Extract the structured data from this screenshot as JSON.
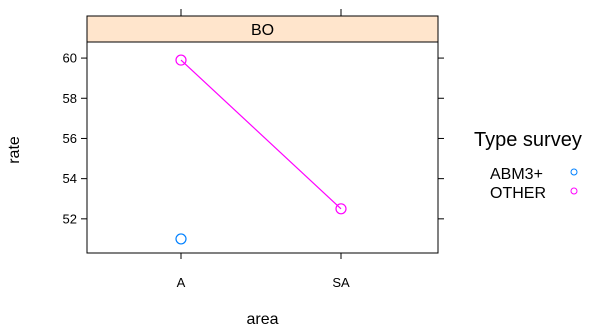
{
  "chart_data": {
    "type": "scatter",
    "panel": "BO",
    "xlabel": "area",
    "ylabel": "rate",
    "categories": [
      "A",
      "SA"
    ],
    "yticks": [
      52,
      54,
      56,
      58,
      60
    ],
    "ylim": [
      50.3,
      60.8
    ],
    "legend": {
      "title": "Type survey",
      "placement": "right"
    },
    "series": [
      {
        "name": "ABM3+",
        "color": "#0080ff",
        "points": [
          {
            "x": "A",
            "y": 51.0
          }
        ],
        "line": false
      },
      {
        "name": "OTHER",
        "color": "#ff00ff",
        "points": [
          {
            "x": "A",
            "y": 59.9
          },
          {
            "x": "SA",
            "y": 52.5
          }
        ],
        "line": true
      }
    ]
  }
}
